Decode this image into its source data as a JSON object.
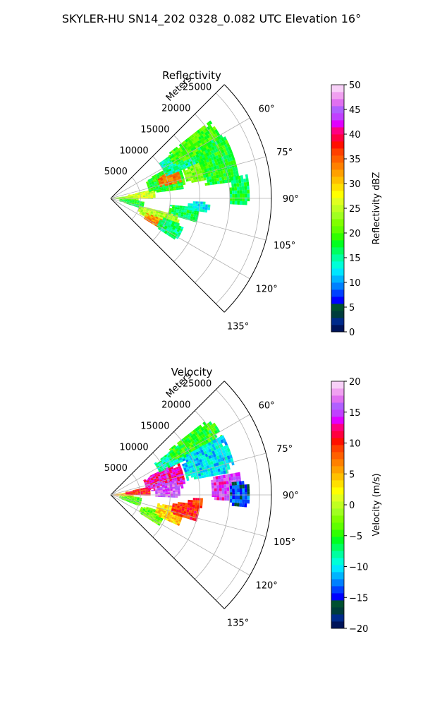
{
  "figure": {
    "suptitle": "SKYLER-HU  SN14_202  0328_0.082 UTC Elevation 16°"
  },
  "chart_data": [
    {
      "type": "heatmap",
      "projection": "polar-sector",
      "title": "Reflectivity",
      "radial_label": "Meters",
      "radial_ticks": [
        5000,
        10000,
        15000,
        20000,
        25000
      ],
      "radial_tick_labels": [
        "5000",
        "10000",
        "15000",
        "20000",
        "25000"
      ],
      "rlim": [
        0,
        27000
      ],
      "theta_range_deg": [
        45,
        135
      ],
      "theta_ticks_deg": [
        45,
        60,
        75,
        90,
        105,
        120,
        135
      ],
      "theta_tick_labels": [
        "60°",
        "75°",
        "90°",
        "105°",
        "120°",
        "135°"
      ],
      "grid": true,
      "colorbar": {
        "label": "Reflectivity dBZ",
        "range": [
          0,
          50
        ],
        "ticks": [
          0,
          5,
          10,
          15,
          20,
          25,
          30,
          35,
          40,
          45,
          50
        ],
        "tick_labels": [
          "0",
          "5",
          "10",
          "15",
          "20",
          "25",
          "30",
          "35",
          "40",
          "45",
          "50"
        ],
        "colors": [
          "#00145a",
          "#002a8a",
          "#003c3c",
          "#005030",
          "#0000ff",
          "#0040ff",
          "#0080ff",
          "#00b4ff",
          "#00e6ff",
          "#00ffd8",
          "#00ffa0",
          "#00ff60",
          "#00ff20",
          "#30ff00",
          "#60ff00",
          "#80ff00",
          "#a0ff20",
          "#c0ff20",
          "#e0ff20",
          "#ffff00",
          "#ffe000",
          "#ffc000",
          "#ffa000",
          "#ff8000",
          "#ff6000",
          "#ff4000",
          "#ff1000",
          "#ff0040",
          "#ff0080",
          "#e000ff",
          "#c040ff",
          "#b060ff",
          "#e070f0",
          "#f0a0f0",
          "#f8d0f8"
        ]
      },
      "regions": [
        {
          "r": [
            500,
            4500
          ],
          "theta": [
            82,
            96
          ],
          "value": 22
        },
        {
          "r": [
            2500,
            7500
          ],
          "theta": [
            78,
            90
          ],
          "value": 26
        },
        {
          "r": [
            6500,
            12500
          ],
          "theta": [
            62,
            82
          ],
          "value": 18
        },
        {
          "r": [
            8500,
            12000
          ],
          "theta": [
            66,
            76
          ],
          "value": 34
        },
        {
          "r": [
            10000,
            18000
          ],
          "theta": [
            54,
            68
          ],
          "value": 15
        },
        {
          "r": [
            12000,
            21000
          ],
          "theta": [
            52,
            62
          ],
          "value": 20
        },
        {
          "r": [
            13000,
            17000
          ],
          "theta": [
            68,
            78
          ],
          "value": 22
        },
        {
          "r": [
            16000,
            21500
          ],
          "theta": [
            60,
            82
          ],
          "value": 18
        },
        {
          "r": [
            20000,
            23000
          ],
          "theta": [
            80,
            92
          ],
          "value": 17
        },
        {
          "r": [
            1500,
            5500
          ],
          "theta": [
            94,
            108
          ],
          "value": 18
        },
        {
          "r": [
            5000,
            12000
          ],
          "theta": [
            104,
            118
          ],
          "value": 24
        },
        {
          "r": [
            6500,
            10500
          ],
          "theta": [
            112,
            121
          ],
          "value": 33
        },
        {
          "r": [
            9000,
            13000
          ],
          "theta": [
            110,
            122
          ],
          "value": 16
        },
        {
          "r": [
            10000,
            15000
          ],
          "theta": [
            96,
            104
          ],
          "value": 17
        },
        {
          "r": [
            13000,
            16500
          ],
          "theta": [
            92,
            98
          ],
          "value": 13
        }
      ]
    },
    {
      "type": "heatmap",
      "projection": "polar-sector",
      "title": "Velocity",
      "radial_label": "Meters",
      "radial_ticks": [
        5000,
        10000,
        15000,
        20000,
        25000
      ],
      "radial_tick_labels": [
        "5000",
        "10000",
        "15000",
        "20000",
        "25000"
      ],
      "rlim": [
        0,
        27000
      ],
      "theta_range_deg": [
        45,
        135
      ],
      "theta_ticks_deg": [
        45,
        60,
        75,
        90,
        105,
        120,
        135
      ],
      "theta_tick_labels": [
        "60°",
        "75°",
        "90°",
        "105°",
        "120°",
        "135°"
      ],
      "grid": true,
      "colorbar": {
        "label": "Velocity (m/s)",
        "range": [
          -20,
          20
        ],
        "ticks": [
          -20,
          -15,
          -10,
          -5,
          0,
          5,
          10,
          15,
          20
        ],
        "tick_labels": [
          "−20",
          "−15",
          "−10",
          "−5",
          "0",
          "5",
          "10",
          "15",
          "20"
        ],
        "colors": [
          "#00145a",
          "#002a8a",
          "#003c3c",
          "#005030",
          "#0000ff",
          "#0040ff",
          "#0080ff",
          "#00b4ff",
          "#00e6ff",
          "#00ffd8",
          "#00ffa0",
          "#00ff60",
          "#00ff20",
          "#30ff00",
          "#60ff00",
          "#80ff00",
          "#a0ff20",
          "#c0ff20",
          "#e0ff20",
          "#ffff00",
          "#ffe000",
          "#ffc000",
          "#ffa000",
          "#ff8000",
          "#ff6000",
          "#ff4000",
          "#ff1000",
          "#ff0040",
          "#ff0080",
          "#e000ff",
          "#c040ff",
          "#b060ff",
          "#e070f0",
          "#f0a0f0",
          "#f8d0f8"
        ]
      },
      "regions": [
        {
          "r": [
            500,
            3500
          ],
          "theta": [
            82,
            96
          ],
          "value": 5
        },
        {
          "r": [
            2500,
            6500
          ],
          "theta": [
            78,
            90
          ],
          "value": 10
        },
        {
          "r": [
            6000,
            12500
          ],
          "theta": [
            64,
            84
          ],
          "value": 13
        },
        {
          "r": [
            7500,
            11500
          ],
          "theta": [
            78,
            92
          ],
          "value": 16
        },
        {
          "r": [
            9000,
            16000
          ],
          "theta": [
            54,
            64
          ],
          "value": -8
        },
        {
          "r": [
            12000,
            21000
          ],
          "theta": [
            52,
            62
          ],
          "value": -5
        },
        {
          "r": [
            13000,
            21000
          ],
          "theta": [
            62,
            78
          ],
          "value": -10
        },
        {
          "r": [
            17000,
            22000
          ],
          "theta": [
            80,
            92
          ],
          "value": 15
        },
        {
          "r": [
            20000,
            23000
          ],
          "theta": [
            84,
            94
          ],
          "value": -14
        },
        {
          "r": [
            1500,
            5000
          ],
          "theta": [
            94,
            110
          ],
          "value": -4
        },
        {
          "r": [
            5500,
            9500
          ],
          "theta": [
            108,
            122
          ],
          "value": -3
        },
        {
          "r": [
            8000,
            12500
          ],
          "theta": [
            100,
            114
          ],
          "value": 4
        },
        {
          "r": [
            10500,
            15000
          ],
          "theta": [
            96,
            106
          ],
          "value": 10
        },
        {
          "r": [
            13000,
            15500
          ],
          "theta": [
            92,
            98
          ],
          "value": 9
        }
      ]
    }
  ]
}
